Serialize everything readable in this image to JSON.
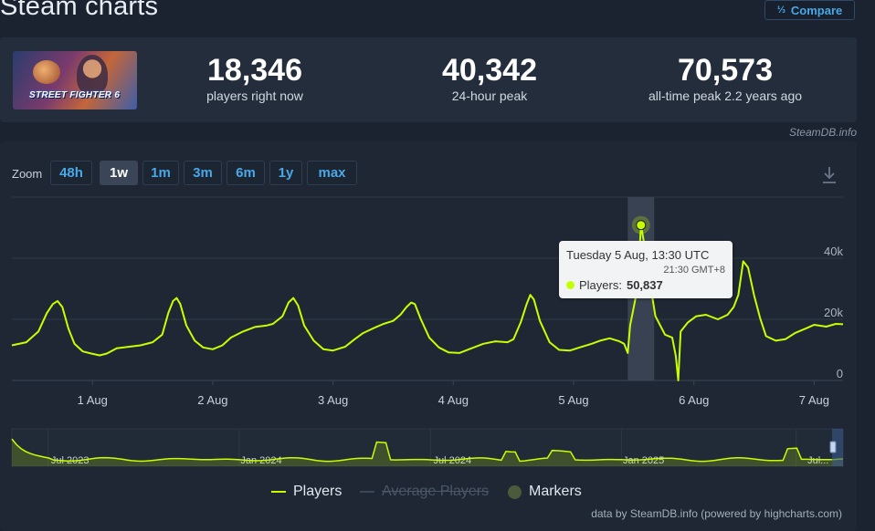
{
  "page": {
    "title": "Steam charts",
    "compare_label": "Compare",
    "compare_icon": "fraction-icon"
  },
  "game": {
    "cover_logo_text": "STREET FIGHTER 6"
  },
  "stats": [
    {
      "value": "18,346",
      "label": "players right now"
    },
    {
      "value": "40,342",
      "label": "24-hour peak"
    },
    {
      "value": "70,573",
      "label": "all-time peak 2.2 years ago"
    }
  ],
  "credit_top": "SteamDB.info",
  "zoom": {
    "label": "Zoom",
    "buttons": [
      "48h",
      "1w",
      "1m",
      "3m",
      "6m",
      "1y",
      "max"
    ],
    "active": "1w"
  },
  "tooltip": {
    "line1": "Tuesday 5 Aug, 13:30 UTC",
    "line2": "21:30 GMT+8",
    "series_label": "Players:",
    "series_value": "50,837"
  },
  "legend": {
    "players": "Players",
    "average": "Average Players",
    "markers": "Markers"
  },
  "credit_bottom": "data by SteamDB.info (powered by highcharts.com)",
  "colors": {
    "players_line": "#c8ff00",
    "accent": "#4aa8e8",
    "background": "#1b2230"
  },
  "chart_data": {
    "type": "line",
    "series_name": "Players",
    "x_tick_labels": [
      "1 Aug",
      "2 Aug",
      "3 Aug",
      "4 Aug",
      "5 Aug",
      "6 Aug",
      "7 Aug"
    ],
    "y_tick_labels": [
      "0",
      "20k",
      "40k"
    ],
    "ylim": [
      0,
      60000
    ],
    "x_domain_days": [
      -0.67,
      6.24
    ],
    "highlight": {
      "x": 4.56,
      "value": 50837,
      "x_band": [
        4.45,
        4.67
      ]
    },
    "grid": true,
    "points": [
      [
        -0.67,
        11500
      ],
      [
        -0.55,
        12500
      ],
      [
        -0.45,
        16000
      ],
      [
        -0.38,
        22000
      ],
      [
        -0.33,
        25000
      ],
      [
        -0.29,
        26000
      ],
      [
        -0.25,
        24000
      ],
      [
        -0.2,
        17000
      ],
      [
        -0.15,
        12000
      ],
      [
        -0.08,
        9500
      ],
      [
        -0.01,
        8800
      ],
      [
        0.06,
        8200
      ],
      [
        0.12,
        8800
      ],
      [
        0.2,
        10500
      ],
      [
        0.3,
        11000
      ],
      [
        0.4,
        11500
      ],
      [
        0.5,
        12500
      ],
      [
        0.58,
        15000
      ],
      [
        0.63,
        22000
      ],
      [
        0.67,
        26000
      ],
      [
        0.7,
        27000
      ],
      [
        0.73,
        25000
      ],
      [
        0.78,
        18000
      ],
      [
        0.85,
        13000
      ],
      [
        0.92,
        10800
      ],
      [
        1.0,
        10200
      ],
      [
        1.08,
        11500
      ],
      [
        1.15,
        14000
      ],
      [
        1.25,
        16000
      ],
      [
        1.35,
        17500
      ],
      [
        1.45,
        18000
      ],
      [
        1.5,
        18500
      ],
      [
        1.58,
        21000
      ],
      [
        1.63,
        25500
      ],
      [
        1.67,
        27000
      ],
      [
        1.71,
        24500
      ],
      [
        1.76,
        18000
      ],
      [
        1.84,
        13000
      ],
      [
        1.92,
        10200
      ],
      [
        2.0,
        9800
      ],
      [
        2.1,
        11000
      ],
      [
        2.18,
        13500
      ],
      [
        2.25,
        15500
      ],
      [
        2.33,
        17000
      ],
      [
        2.42,
        18500
      ],
      [
        2.5,
        19500
      ],
      [
        2.56,
        21500
      ],
      [
        2.61,
        24000
      ],
      [
        2.65,
        25500
      ],
      [
        2.68,
        25000
      ],
      [
        2.73,
        20000
      ],
      [
        2.8,
        14000
      ],
      [
        2.88,
        10800
      ],
      [
        2.96,
        9200
      ],
      [
        3.05,
        9000
      ],
      [
        3.15,
        10500
      ],
      [
        3.25,
        12000
      ],
      [
        3.35,
        12800
      ],
      [
        3.45,
        12500
      ],
      [
        3.5,
        13500
      ],
      [
        3.56,
        19000
      ],
      [
        3.61,
        25000
      ],
      [
        3.64,
        28000
      ],
      [
        3.67,
        26500
      ],
      [
        3.72,
        19500
      ],
      [
        3.8,
        12500
      ],
      [
        3.88,
        10000
      ],
      [
        3.97,
        9800
      ],
      [
        4.05,
        10800
      ],
      [
        4.15,
        12000
      ],
      [
        4.22,
        13000
      ],
      [
        4.3,
        13800
      ],
      [
        4.38,
        12800
      ],
      [
        4.42,
        12000
      ],
      [
        4.45,
        9000
      ],
      [
        4.47,
        18000
      ],
      [
        4.5,
        24000
      ],
      [
        4.53,
        30000
      ],
      [
        4.56,
        50837
      ],
      [
        4.59,
        44000
      ],
      [
        4.63,
        33000
      ],
      [
        4.68,
        21000
      ],
      [
        4.76,
        15000
      ],
      [
        4.82,
        14000
      ],
      [
        4.85,
        8000
      ],
      [
        4.87,
        0
      ],
      [
        4.89,
        16000
      ],
      [
        4.95,
        19000
      ],
      [
        5.02,
        21000
      ],
      [
        5.1,
        21500
      ],
      [
        5.2,
        20000
      ],
      [
        5.28,
        21500
      ],
      [
        5.33,
        24000
      ],
      [
        5.37,
        28000
      ],
      [
        5.41,
        39000
      ],
      [
        5.45,
        37000
      ],
      [
        5.5,
        28000
      ],
      [
        5.55,
        20500
      ],
      [
        5.6,
        14500
      ],
      [
        5.68,
        13000
      ],
      [
        5.76,
        13500
      ],
      [
        5.84,
        15500
      ],
      [
        5.93,
        17000
      ],
      [
        6.0,
        18200
      ],
      [
        6.1,
        17600
      ],
      [
        6.18,
        18500
      ],
      [
        6.24,
        18400
      ]
    ]
  },
  "navigator": {
    "labels": [
      "Jul 2023",
      "Jan 2024",
      "Jul 2024",
      "Jan 2025",
      "Jul..."
    ]
  }
}
